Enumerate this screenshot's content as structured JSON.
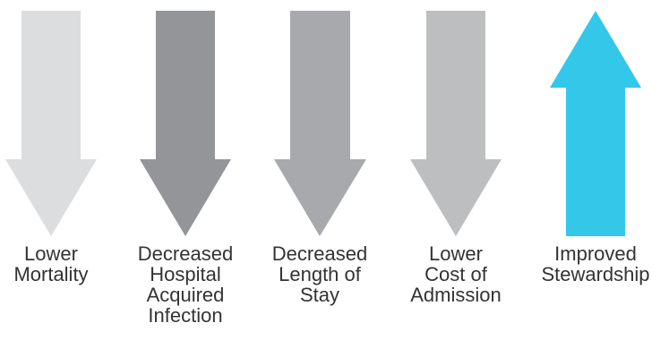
{
  "arrows": [
    {
      "direction": "down",
      "color": "#dcdddf",
      "label_lines": [
        "Lower",
        "Mortality"
      ]
    },
    {
      "direction": "down",
      "color": "#939598",
      "label_lines": [
        "Decreased",
        "Hospital",
        "Acquired",
        "Infection"
      ]
    },
    {
      "direction": "down",
      "color": "#a7a9ac",
      "label_lines": [
        "Decreased",
        "Length of",
        "Stay"
      ]
    },
    {
      "direction": "down",
      "color": "#bcbec0",
      "label_lines": [
        "Lower",
        "Cost of",
        "Admission"
      ]
    },
    {
      "direction": "up",
      "color": "#33c7ea",
      "label_lines": [
        "Improved",
        "Stewardship"
      ]
    }
  ]
}
